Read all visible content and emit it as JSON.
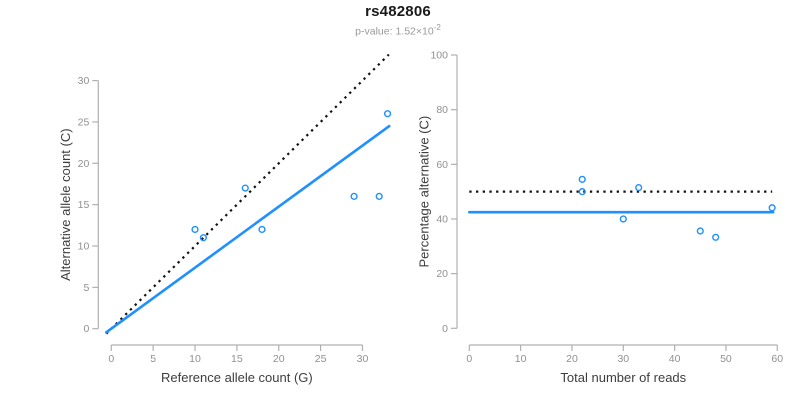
{
  "header": {
    "title": "rs482806",
    "p_label": "p-value: 1.52×10",
    "p_exponent": "-2"
  },
  "colors": {
    "blue": "#1E90FF",
    "dotted_black": "#111111",
    "axis": "#b0b0b0",
    "tick_label": "#909090",
    "axis_title": "#3d3d3d",
    "title": "#1a1a1a",
    "subtitle": "#9a9a9a"
  },
  "chart_data": [
    {
      "type": "scatter",
      "panel": "allele-counts",
      "xlabel": "Reference allele count (G)",
      "ylabel": "Alternative allele count (C)",
      "xlim": [
        0,
        33
      ],
      "ylim": [
        0,
        33
      ],
      "xticks": [
        0,
        5,
        10,
        15,
        20,
        25,
        30
      ],
      "yticks": [
        0,
        5,
        10,
        15,
        20,
        25,
        30
      ],
      "grid": false,
      "points": [
        [
          10,
          12
        ],
        [
          11,
          11
        ],
        [
          16,
          17
        ],
        [
          18,
          12
        ],
        [
          29,
          16
        ],
        [
          32,
          16
        ],
        [
          33,
          26
        ]
      ],
      "lines": [
        {
          "name": "expected-1to1-line",
          "style": "dotted",
          "color": "#111111",
          "from": [
            -0.6,
            -0.6
          ],
          "to": [
            33.15,
            33.15
          ]
        },
        {
          "name": "fitted-ratio-line",
          "style": "solid",
          "color": "#1E90FF",
          "from": [
            -0.6,
            -0.44
          ],
          "to": [
            33.2,
            24.5
          ]
        }
      ]
    },
    {
      "type": "scatter",
      "panel": "percentage-alternative",
      "xlabel": "Total number of reads",
      "ylabel": "Percentage alternative (C)",
      "xlim": [
        0,
        60
      ],
      "ylim": [
        0,
        100
      ],
      "xticks": [
        0,
        10,
        20,
        30,
        40,
        50,
        60
      ],
      "yticks": [
        0,
        20,
        40,
        60,
        80,
        100
      ],
      "grid": false,
      "points": [
        [
          22,
          54.5
        ],
        [
          22,
          50
        ],
        [
          30,
          40
        ],
        [
          33,
          51.5
        ],
        [
          45,
          35.6
        ],
        [
          48,
          33.3
        ],
        [
          59,
          44.1
        ]
      ],
      "lines": [
        {
          "name": "expected-50pct-line",
          "style": "dotted",
          "color": "#111111",
          "from": [
            0,
            50
          ],
          "to": [
            59,
            50
          ]
        },
        {
          "name": "mean-percentage-line",
          "style": "solid",
          "color": "#1E90FF",
          "from": [
            0,
            42.5
          ],
          "to": [
            59.2,
            42.5
          ]
        }
      ]
    }
  ]
}
